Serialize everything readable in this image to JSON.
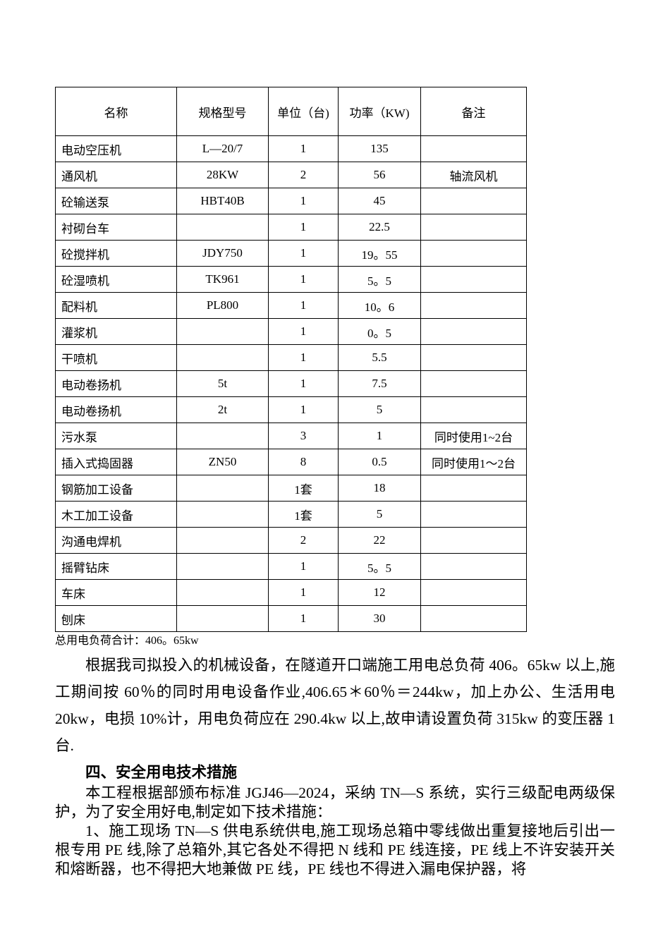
{
  "table": {
    "headers": [
      "名称",
      "规格型号",
      "单位（台)",
      "功率（KW)",
      "备注"
    ],
    "rows": [
      {
        "name": "电动空压机",
        "spec": "L—20/7",
        "unit": "1",
        "power": "135",
        "remark": ""
      },
      {
        "name": "通风机",
        "spec": "28KW",
        "unit": "2",
        "power": "56",
        "remark": "轴流风机"
      },
      {
        "name": "砼输送泵",
        "spec": "HBT40B",
        "unit": "1",
        "power": "45",
        "remark": ""
      },
      {
        "name": "衬砌台车",
        "spec": "",
        "unit": "1",
        "power": "22.5",
        "remark": ""
      },
      {
        "name": "砼搅拌机",
        "spec": "JDY750",
        "unit": "1",
        "power": "19。55",
        "remark": ""
      },
      {
        "name": "砼湿喷机",
        "spec": "TK961",
        "unit": "1",
        "power": "5。5",
        "remark": ""
      },
      {
        "name": "配料机",
        "spec": "PL800",
        "unit": "1",
        "power": "10。6",
        "remark": ""
      },
      {
        "name": "灌浆机",
        "spec": "",
        "unit": "1",
        "power": "0。5",
        "remark": ""
      },
      {
        "name": "干喷机",
        "spec": "",
        "unit": "1",
        "power": "5.5",
        "remark": ""
      },
      {
        "name": "电动卷扬机",
        "spec": "5t",
        "unit": "1",
        "power": "7.5",
        "remark": ""
      },
      {
        "name": "电动卷扬机",
        "spec": "2t",
        "unit": "1",
        "power": "5",
        "remark": ""
      },
      {
        "name": "污水泵",
        "spec": "",
        "unit": "3",
        "power": "1",
        "remark": "同时使用1~2台"
      },
      {
        "name": "插入式捣固器",
        "spec": "ZN50",
        "unit": "8",
        "power": "0.5",
        "remark": "同时使用1～2台"
      },
      {
        "name": "钢筋加工设备",
        "spec": "",
        "unit": "1套",
        "power": "18",
        "remark": ""
      },
      {
        "name": "木工加工设备",
        "spec": "",
        "unit": "1套",
        "power": "5",
        "remark": ""
      },
      {
        "name": "沟通电焊机",
        "spec": "",
        "unit": "2",
        "power": "22",
        "remark": ""
      },
      {
        "name": "摇臂钻床",
        "spec": "",
        "unit": "1",
        "power": "5。5",
        "remark": ""
      },
      {
        "name": "车床",
        "spec": "",
        "unit": "1",
        "power": "12",
        "remark": ""
      },
      {
        "name": "刨床",
        "spec": "",
        "unit": "1",
        "power": "30",
        "remark": ""
      }
    ]
  },
  "summary": "总用电负荷合计：406。65kw",
  "paragraphs": {
    "load_calc": "根据我司拟投入的机械设备，在隧道开口端施工用电总负荷 406。65kw 以上,施工期间按 60％的同时用电设备作业,406.65＊60％＝244kw，加上办公、生活用电 20kw，电损 10%计，用电负荷应在 290.4kw 以上,故申请设置负荷 315kw 的变压器 1 台."
  },
  "section": {
    "heading": "四、安全用电技术措施",
    "intro": "本工程根据部颁布标准 JGJ46—2024，采纳 TN—S 系统，实行三级配电两级保护，为了安全用好电,制定如下技术措施：",
    "item1": "1、施工现场 TN—S 供电系统供电,施工现场总箱中零线做出重复接地后引出一根专用 PE 线,除了总箱外,其它各处不得把 N 线和 PE 线连接，PE 线上不许安装开关和熔断器，也不得把大地兼做 PE 线，PE 线也不得进入漏电保护器，将"
  }
}
